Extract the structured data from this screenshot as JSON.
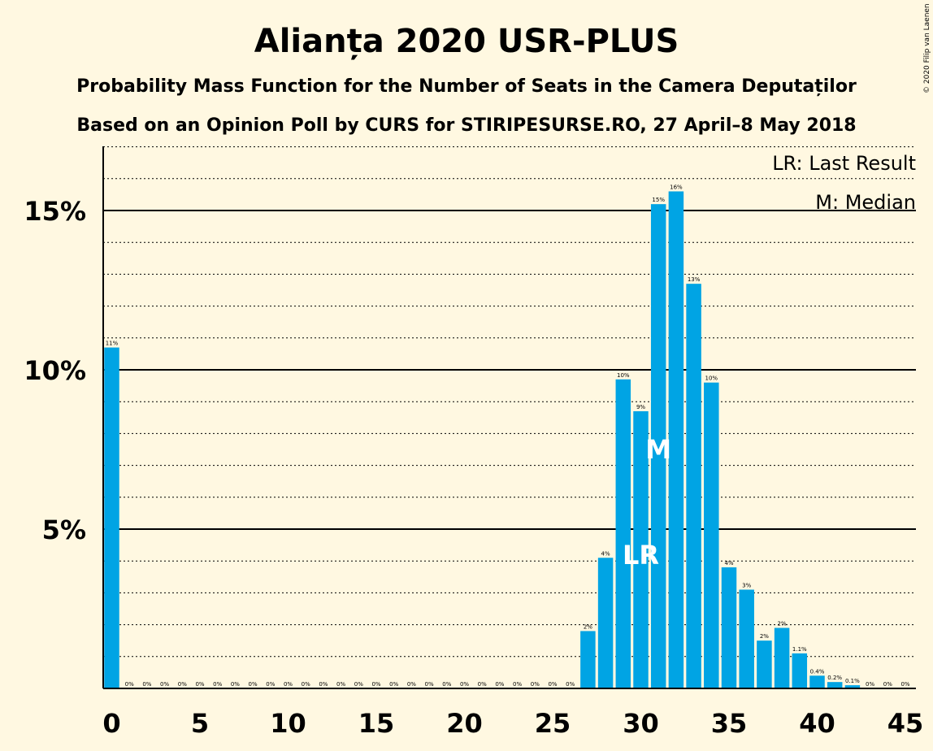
{
  "chart_data": {
    "type": "bar",
    "title": "Alianța 2020 USR-PLUS",
    "subtitle_1": "Probability Mass Function for the Number of Seats in the Camera Deputaților",
    "subtitle_2": "Based on an Opinion Poll by CURS for STIRIPESURSE.RO, 27 April–8 May 2018",
    "copyright": "© 2020 Filip van Laenen",
    "legend": {
      "placement": "top-right",
      "entries": [
        "LR: Last Result",
        "M: Median"
      ]
    },
    "bar_color": "#00a4e4",
    "x": [
      0,
      1,
      2,
      3,
      4,
      5,
      6,
      7,
      8,
      9,
      10,
      11,
      12,
      13,
      14,
      15,
      16,
      17,
      18,
      19,
      20,
      21,
      22,
      23,
      24,
      25,
      26,
      27,
      28,
      29,
      30,
      31,
      32,
      33,
      34,
      35,
      36,
      37,
      38,
      39,
      40,
      41,
      42,
      43,
      44,
      45
    ],
    "values": [
      10.7,
      0,
      0,
      0,
      0,
      0,
      0,
      0,
      0,
      0,
      0,
      0,
      0,
      0,
      0,
      0,
      0,
      0,
      0,
      0,
      0,
      0,
      0,
      0,
      0,
      0,
      0,
      1.8,
      4.1,
      9.7,
      8.7,
      15.2,
      15.6,
      12.7,
      9.6,
      3.8,
      3.1,
      1.5,
      1.9,
      1.1,
      0.4,
      0.2,
      0.1,
      0,
      0,
      0
    ],
    "labels": [
      "11%",
      "0%",
      "0%",
      "0%",
      "0%",
      "0%",
      "0%",
      "0%",
      "0%",
      "0%",
      "0%",
      "0%",
      "0%",
      "0%",
      "0%",
      "0%",
      "0%",
      "0%",
      "0%",
      "0%",
      "0%",
      "0%",
      "0%",
      "0%",
      "0%",
      "0%",
      "0%",
      "2%",
      "4%",
      "10%",
      "9%",
      "15%",
      "16%",
      "13%",
      "10%",
      "4%",
      "3%",
      "2%",
      "2%",
      "1.1%",
      "0.4%",
      "0.2%",
      "0.1%",
      "0%",
      "0%",
      "0%"
    ],
    "xticks": [
      0,
      5,
      10,
      15,
      20,
      25,
      30,
      35,
      40,
      45
    ],
    "yticks": [
      5,
      10,
      15
    ],
    "ytick_labels": [
      "5%",
      "10%",
      "15%"
    ],
    "ylim": [
      0,
      17
    ],
    "xlim": [
      -0.5,
      45.5
    ],
    "grid": "major solid, minor dotted at every 1%",
    "last_result_seat": 30,
    "last_result_label": "LR",
    "median_seat": 31,
    "median_label": "M"
  }
}
